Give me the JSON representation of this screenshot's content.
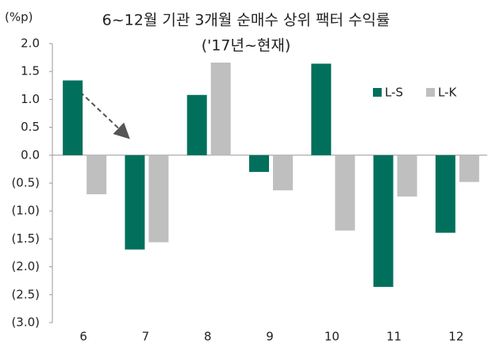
{
  "chart_data": {
    "type": "bar",
    "title": "6~12월 기관 3개월 순매수 상위 팩터 수익률",
    "subtitle": "('17년~현재)",
    "y_label": "(%p)",
    "categories": [
      "6",
      "7",
      "8",
      "9",
      "10",
      "11",
      "12"
    ],
    "series": [
      {
        "name": "L-S",
        "color": "#00705c",
        "values": [
          1.34,
          -1.69,
          1.08,
          -0.3,
          1.64,
          -2.36,
          -1.39
        ]
      },
      {
        "name": "L-K",
        "color": "#bfbfbf",
        "values": [
          -0.7,
          -1.56,
          1.66,
          -0.63,
          -1.35,
          -0.74,
          -0.48
        ]
      }
    ],
    "ylim": [
      -3.0,
      2.0
    ],
    "yticks": [
      {
        "value": 2.0,
        "label": "2.0"
      },
      {
        "value": 1.5,
        "label": "1.5"
      },
      {
        "value": 1.0,
        "label": "1.0"
      },
      {
        "value": 0.5,
        "label": "0.5"
      },
      {
        "value": 0.0,
        "label": "0.0"
      },
      {
        "value": -0.5,
        "label": "(0.5)"
      },
      {
        "value": -1.0,
        "label": "(1.0)"
      },
      {
        "value": -1.5,
        "label": "(1.5)"
      },
      {
        "value": -2.0,
        "label": "(2.0)"
      },
      {
        "value": -2.5,
        "label": "(2.5)"
      },
      {
        "value": -3.0,
        "label": "(3.0)"
      }
    ],
    "grid": false,
    "legend": "right"
  }
}
